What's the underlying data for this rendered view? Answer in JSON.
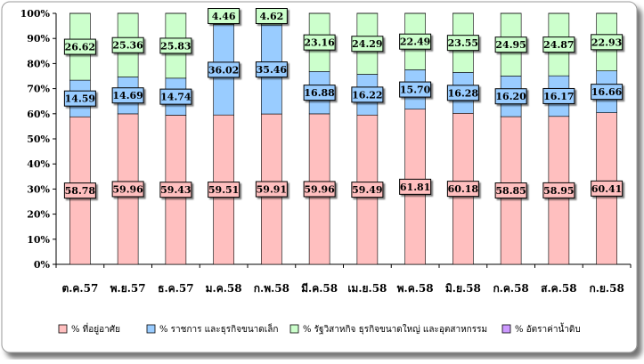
{
  "chart_data": {
    "type": "bar",
    "stacked": true,
    "title": "",
    "xlabel": "",
    "ylabel": "",
    "ylim": [
      0,
      100
    ],
    "ytick_labels": [
      "0%",
      "10%",
      "20%",
      "30%",
      "40%",
      "50%",
      "60%",
      "70%",
      "80%",
      "90%",
      "100%"
    ],
    "grid": false,
    "legend_position": "bottom",
    "categories": [
      "ต.ค.57",
      "พ.ย.57",
      "ธ.ค.57",
      "ม.ค.58",
      "ก.พ.58",
      "มี.ค.58",
      "เม.ย.58",
      "พ.ค.58",
      "มิ.ย.58",
      "ก.ค.58",
      "ส.ค.58",
      "ก.ย.58"
    ],
    "series": [
      {
        "name": "% ที่อยู่อาศัย",
        "color": "#FFBFBF",
        "values": [
          58.78,
          59.96,
          59.43,
          59.51,
          59.91,
          59.96,
          59.49,
          61.81,
          60.18,
          58.85,
          58.95,
          60.41
        ],
        "labels": [
          "58.78",
          "59.96",
          "59.43",
          "59.51",
          "59.91",
          "59.96",
          "59.49",
          "61.81",
          "60.18",
          "58.85",
          "58.95",
          "60.41"
        ]
      },
      {
        "name": "% ราชการ และธุรกิจขนาดเล็ก",
        "color": "#99CCFF",
        "values": [
          14.59,
          14.69,
          14.74,
          36.02,
          35.46,
          16.88,
          16.22,
          15.7,
          16.28,
          16.2,
          16.17,
          16.66
        ],
        "labels": [
          "14.59",
          "14.69",
          "14.74",
          "36.02",
          "35.46",
          "16.88",
          "16.22",
          "15.70",
          "16.28",
          "16.20",
          "16.17",
          "16.66"
        ]
      },
      {
        "name": "% รัฐวิสาหกิจ ธุรกิจขนาดใหญ่ และอุตสาหกรรม",
        "color": "#CCFFCC",
        "values": [
          26.62,
          25.36,
          25.83,
          4.46,
          4.62,
          23.16,
          24.29,
          22.49,
          23.55,
          24.95,
          24.87,
          22.93
        ],
        "labels": [
          "26.62",
          "25.36",
          "25.83",
          "4.46",
          "4.62",
          "23.16",
          "24.29",
          "22.49",
          "23.55",
          "24.95",
          "24.87",
          "22.93"
        ]
      },
      {
        "name": "% อัตราค่าน้ำดิบ",
        "color": "#CC99FF",
        "values": [
          0.01,
          0.01,
          0.01,
          0.01,
          0.01,
          0.01,
          0.01,
          0.01,
          0.01,
          0.01,
          0.01,
          0.01
        ],
        "labels": []
      }
    ]
  }
}
